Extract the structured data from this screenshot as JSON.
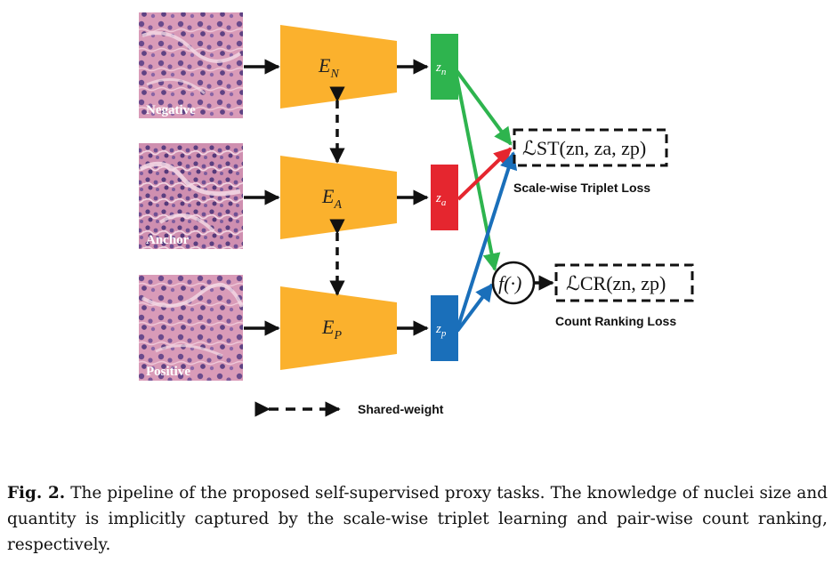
{
  "patches": [
    {
      "label": "Negative"
    },
    {
      "label": "Anchor"
    },
    {
      "label": "Positive"
    }
  ],
  "encoders": {
    "negative": {
      "base": "E",
      "sub": "N"
    },
    "anchor": {
      "base": "E",
      "sub": "A"
    },
    "positive": {
      "base": "E",
      "sub": "P"
    }
  },
  "embeddings": {
    "negative": {
      "base": "z",
      "sub": "n",
      "color": "#2eb44e"
    },
    "anchor": {
      "base": "z",
      "sub": "a",
      "color": "#e5262f"
    },
    "positive": {
      "base": "z",
      "sub": "p",
      "color": "#1a6fba"
    }
  },
  "losses": {
    "triplet_formula": "ℒST(zn, za, zp)",
    "triplet_name": "Scale-wise Triplet Loss",
    "function": "f(·)",
    "ranking_formula": "ℒCR(zn, zp)",
    "ranking_name": "Count Ranking Loss"
  },
  "legend": {
    "shared_weight": "Shared-weight"
  },
  "colors": {
    "encoder": "#fbb12d",
    "arrow": "#111111"
  },
  "caption": {
    "label": "Fig. 2.",
    "text": "The pipeline of the proposed self-supervised proxy tasks. The knowledge of nuclei size and quantity is implicitly captured by the scale-wise triplet learning and pair-wise count ranking, respectively."
  }
}
